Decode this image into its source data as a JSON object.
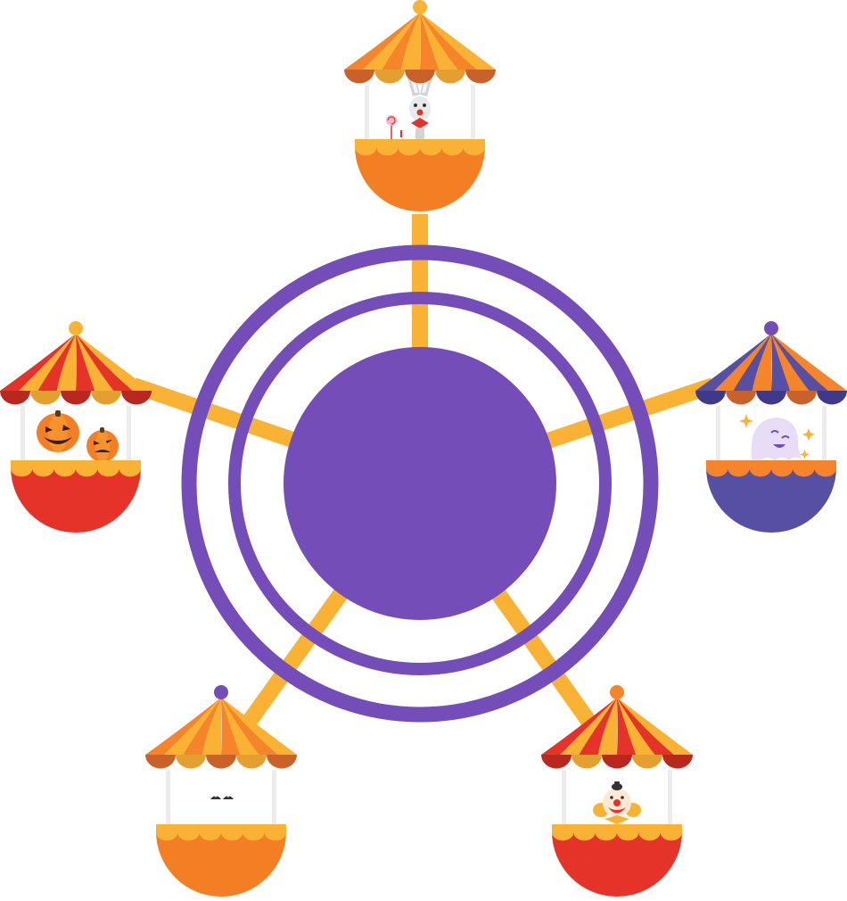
{
  "wheel": {
    "ring_color": "#744db8",
    "hub_color": "#744db8",
    "spoke_color": "#f9b233",
    "background": "#ffffff"
  },
  "gondolas": [
    {
      "id": "top",
      "canopy": [
        "#f5842a",
        "#f9b233"
      ],
      "valance": [
        "#c8612a",
        "#e3a030"
      ],
      "finial": "#f9b233",
      "basket": "#f47e23",
      "basket_rim": "#f9b233",
      "passenger": "bunny-clown-icon"
    },
    {
      "id": "left",
      "canopy": [
        "#e5332a",
        "#f9b233"
      ],
      "valance": [
        "#b8281f",
        "#e3a030"
      ],
      "finial": "#f9b233",
      "basket": "#e5332a",
      "basket_rim": "#f9b233",
      "passenger": "jack-o-lantern-icon"
    },
    {
      "id": "right",
      "canopy": [
        "#574fa2",
        "#f5842a"
      ],
      "valance": [
        "#3f3989",
        "#c8612a"
      ],
      "finial": "#744db8",
      "basket": "#574fa2",
      "basket_rim": "#f5842a",
      "passenger": "ghost-icon"
    },
    {
      "id": "bottom-left",
      "canopy": [
        "#f5842a",
        "#f9b233"
      ],
      "valance": [
        "#c8612a",
        "#e3a030"
      ],
      "finial": "#744db8",
      "basket": "#f47e23",
      "basket_rim": "#f9b233",
      "passenger": "peeking-eyes-icon"
    },
    {
      "id": "bottom-right",
      "canopy": [
        "#e5332a",
        "#f9b233"
      ],
      "valance": [
        "#b8281f",
        "#e3a030"
      ],
      "finial": "#f5842a",
      "basket": "#e5332a",
      "basket_rim": "#f9b233",
      "passenger": "clown-icon"
    }
  ]
}
